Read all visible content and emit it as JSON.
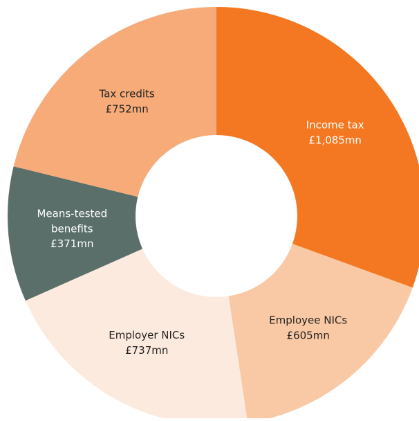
{
  "chart_data": {
    "type": "donut",
    "categories": [
      "Income tax",
      "Employee NICs",
      "Employer NICs",
      "Means-tested benefits",
      "Tax credits"
    ],
    "values": [
      1085,
      605,
      737,
      371,
      752
    ],
    "value_labels": [
      "£1,085mn",
      "£605mn",
      "£737mn",
      "£371mn",
      "£752mn"
    ],
    "colors": [
      "#f47721",
      "#f9c8a4",
      "#fdeade",
      "#5a6e6a",
      "#f6ab79"
    ]
  }
}
